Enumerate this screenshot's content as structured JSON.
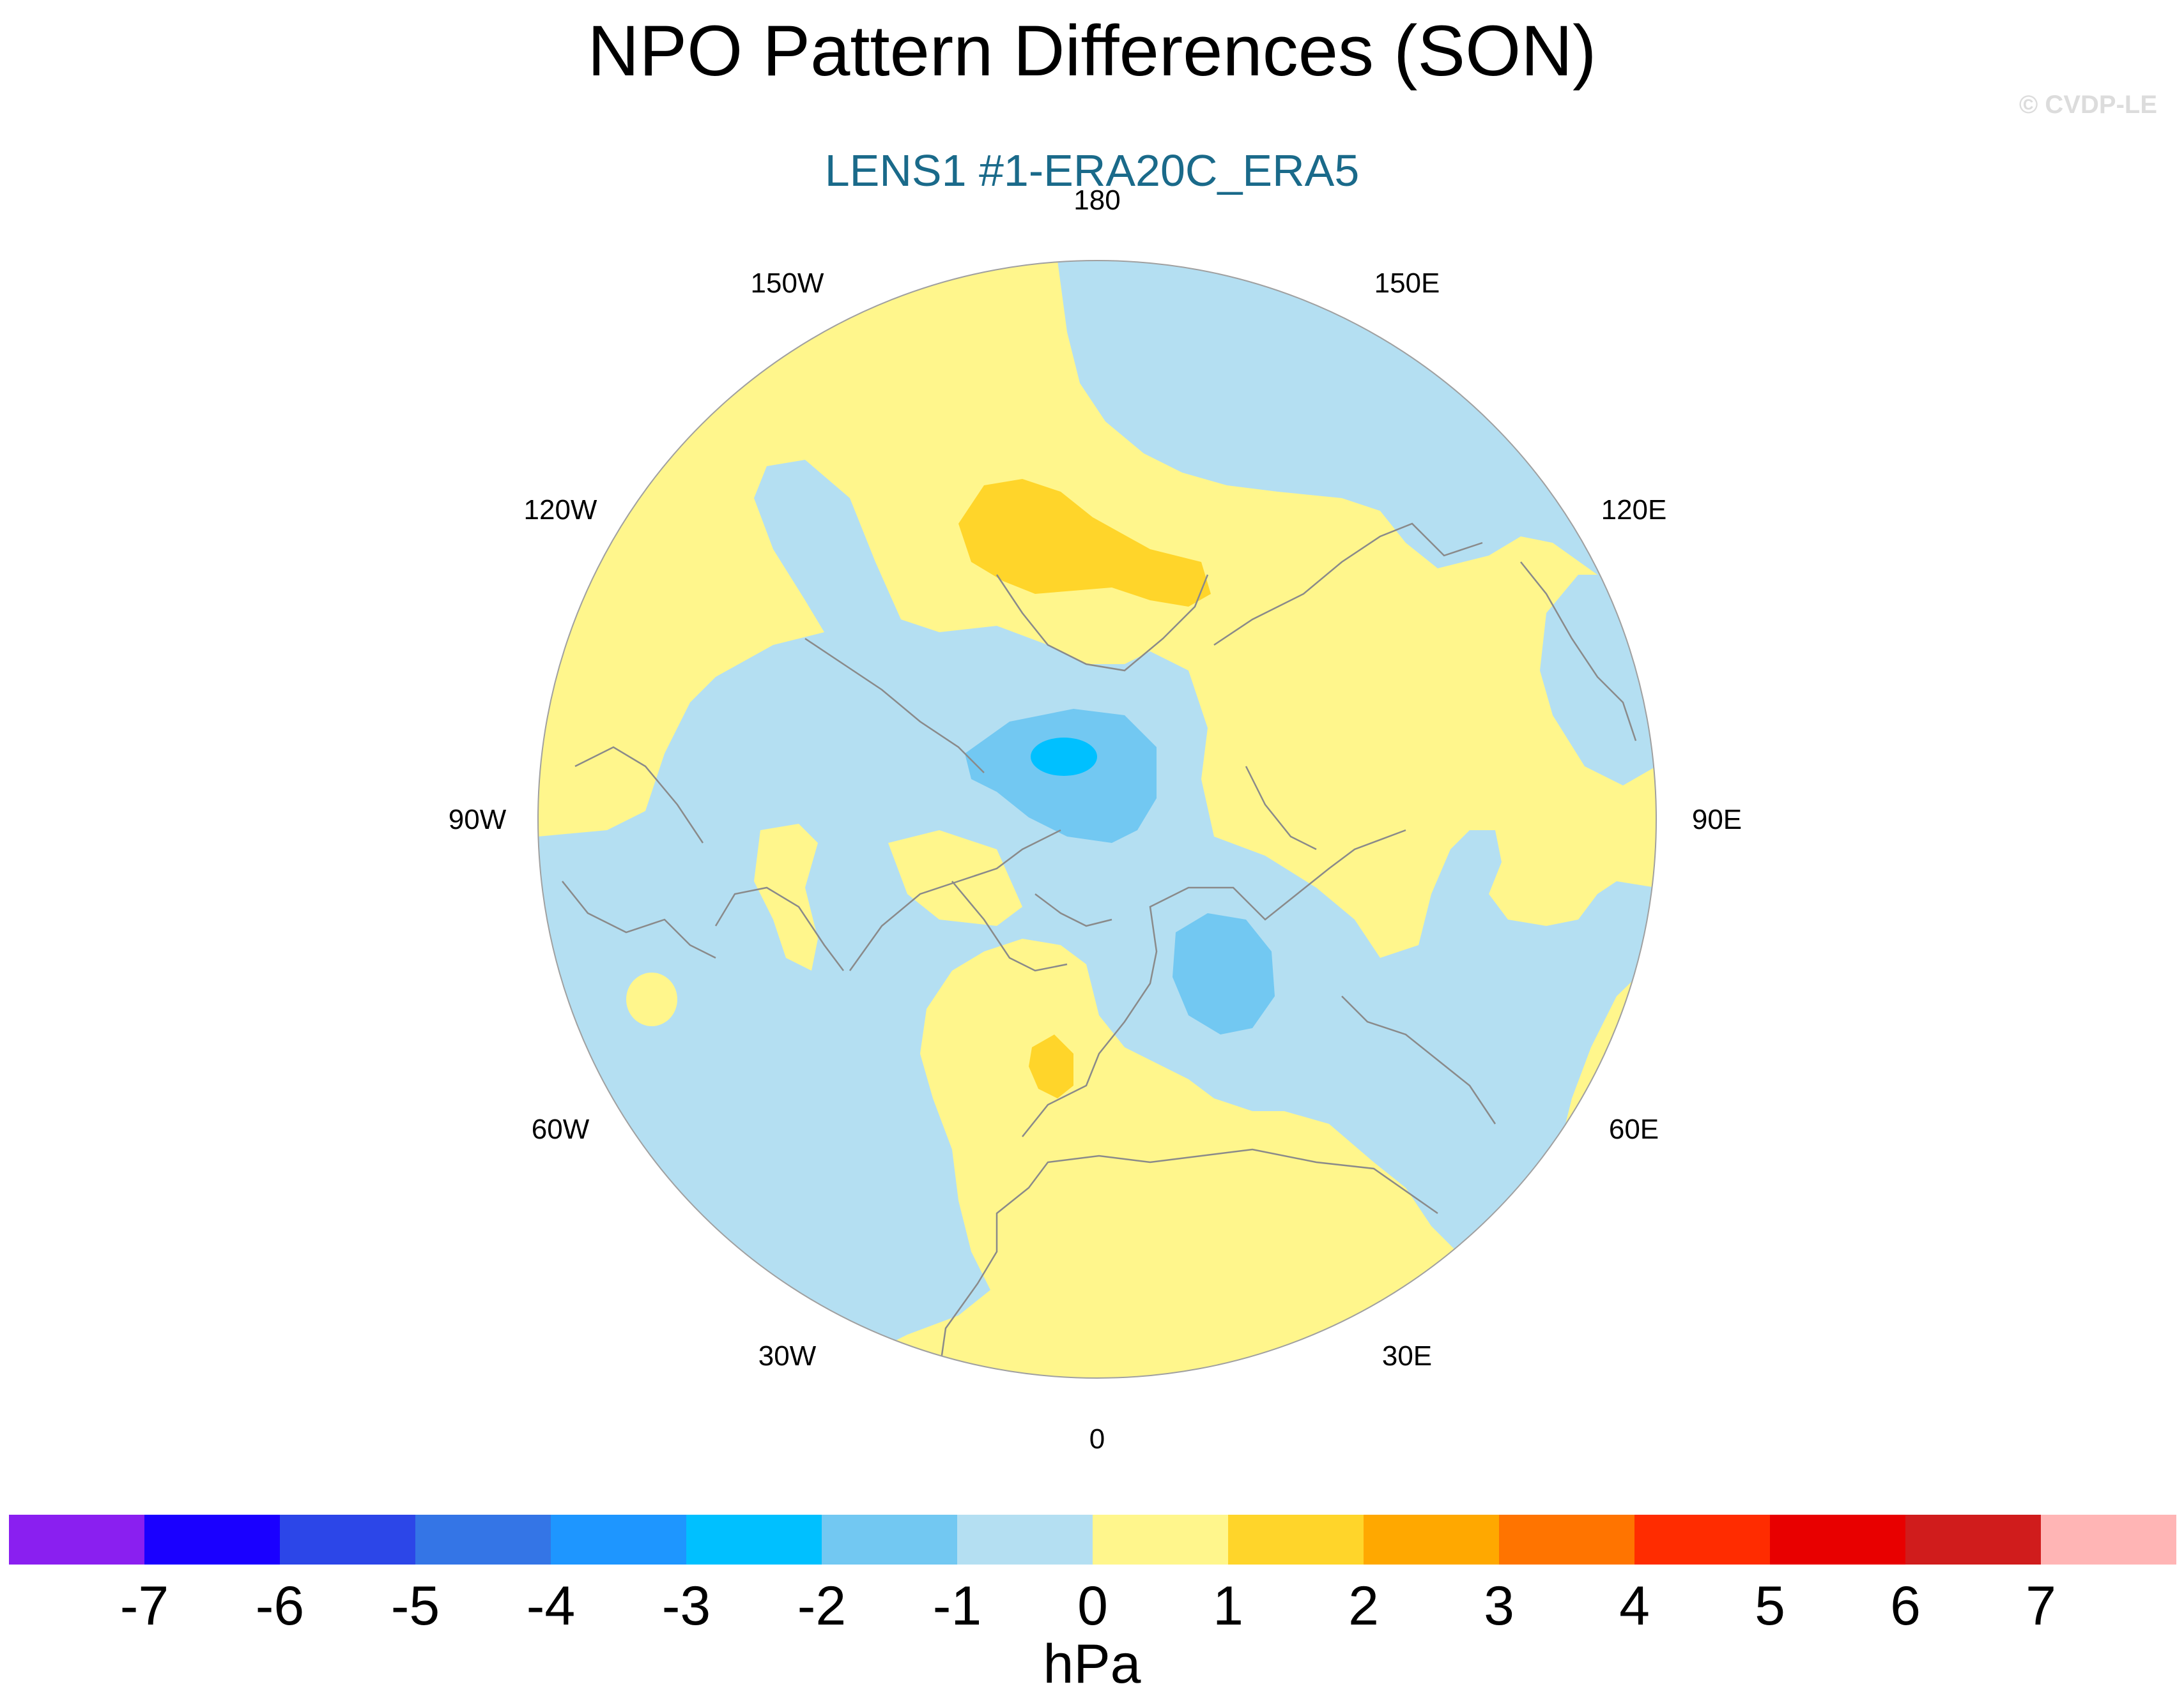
{
  "title": "NPO Pattern Differences (SON)",
  "subtitle": "LENS1 #1-ERA20C_ERA5",
  "copyright": "© CVDP-LE",
  "map": {
    "projection": "north-polar-stereographic",
    "longitude_labels": [
      "180",
      "150E",
      "120E",
      "90E",
      "60E",
      "30E",
      "0",
      "30W",
      "60W",
      "90W",
      "120W",
      "150W"
    ]
  },
  "colorbar": {
    "colors": [
      "#8a1ff0",
      "#1a00ff",
      "#2c46e8",
      "#3475e6",
      "#1e96ff",
      "#00c0ff",
      "#72c8f2",
      "#b4dff2",
      "#fff68c",
      "#ffd52a",
      "#ffa800",
      "#ff7400",
      "#ff2c00",
      "#e80000",
      "#d01c1c",
      "#ffb5b5"
    ],
    "tick_labels": [
      "-7",
      "-6",
      "-5",
      "-4",
      "-3",
      "-2",
      "-1",
      "0",
      "1",
      "2",
      "3",
      "4",
      "5",
      "6",
      "7"
    ],
    "units": "hPa"
  },
  "contour_colors": {
    "neg1": "#b4dff2",
    "neg2": "#72c8f2",
    "neg3": "#00c0ff",
    "pos0": "#fff68c",
    "pos1": "#ffd52a"
  }
}
